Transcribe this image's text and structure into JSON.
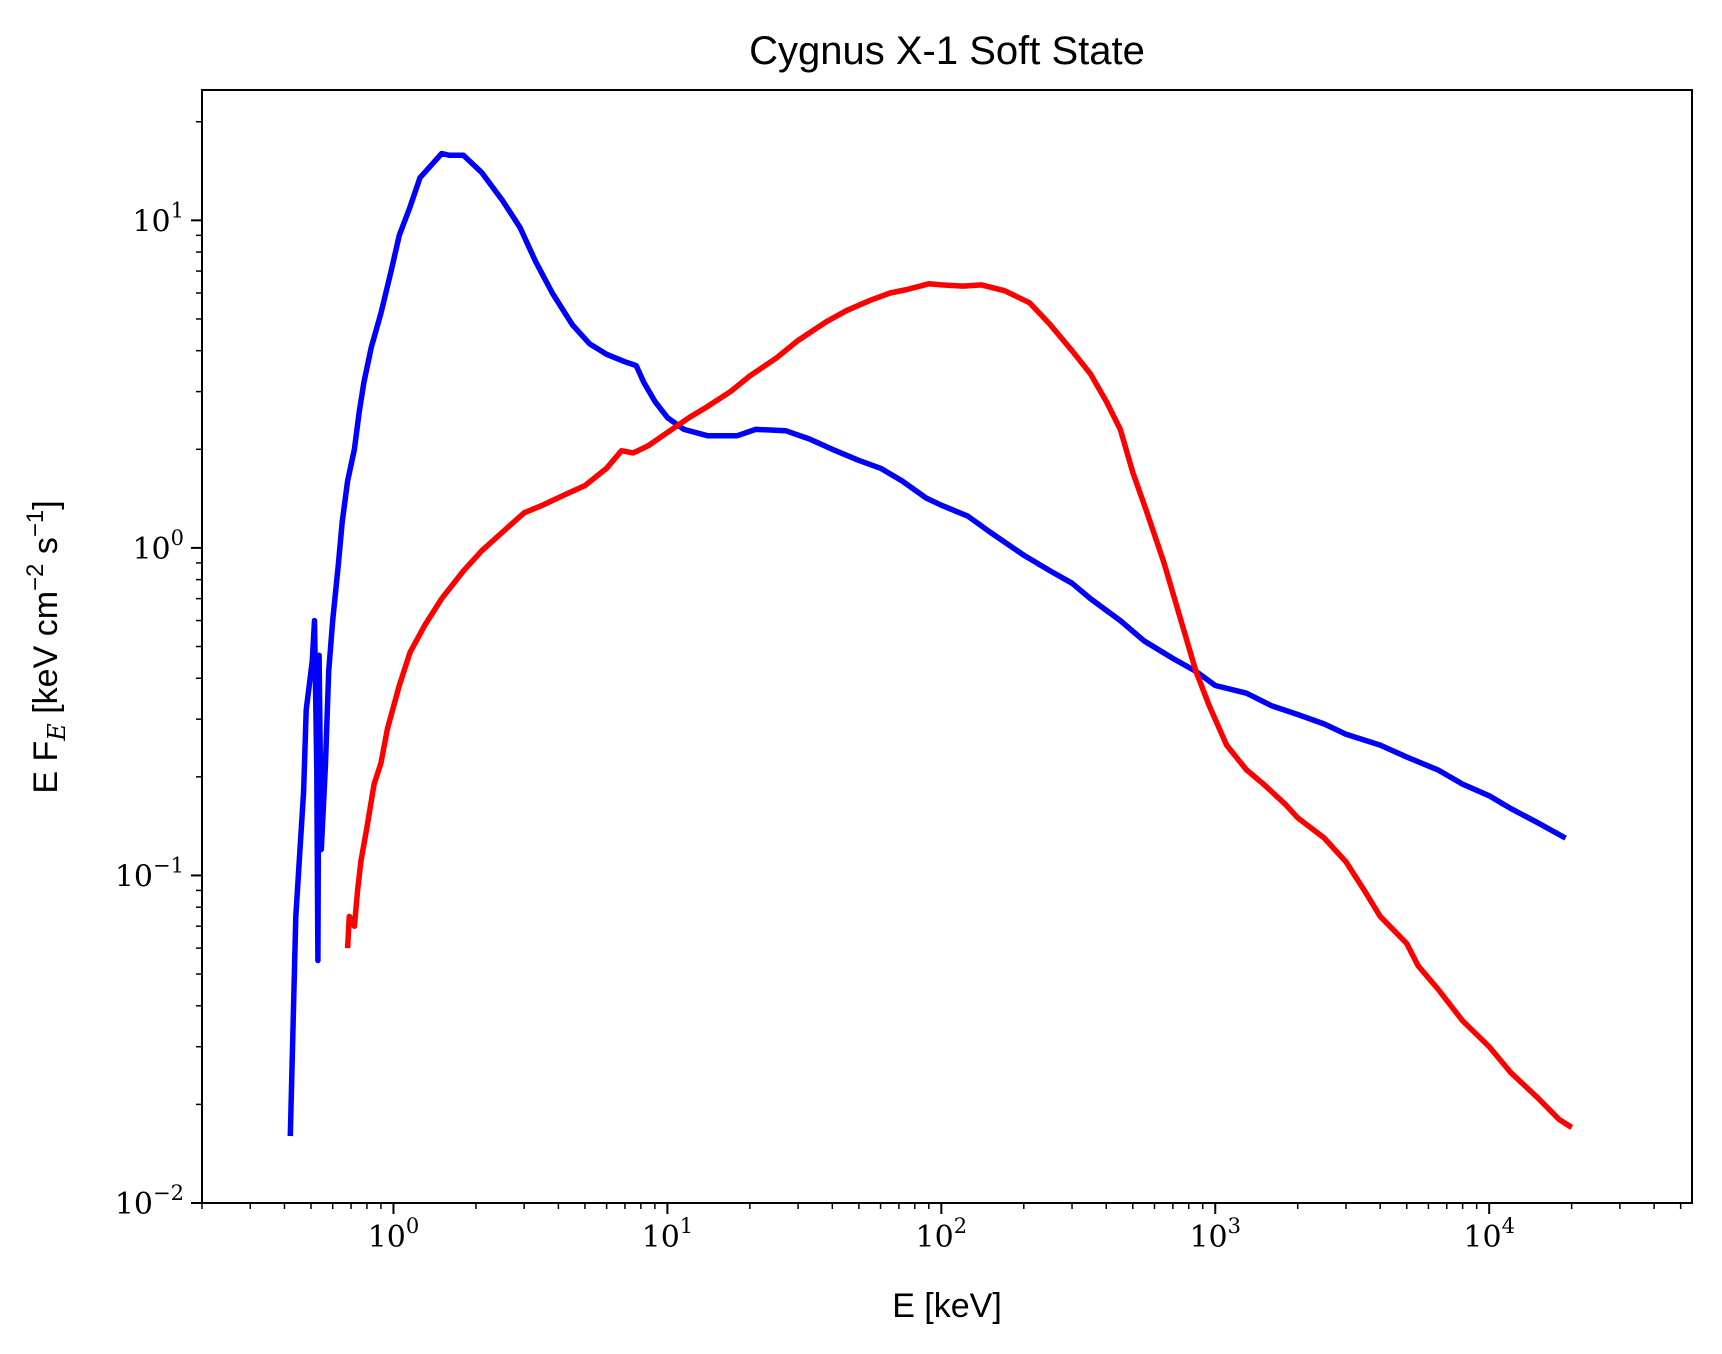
{
  "chart_data": {
    "type": "line",
    "title": "Cygnus X-1 Soft State",
    "xlabel": "E [keV]",
    "ylabel_main": "E F",
    "ylabel_sub": "E",
    "ylabel_units": "[keV cm",
    "ylabel_exp1": "−2",
    "ylabel_mid": " s",
    "ylabel_exp2": "−1",
    "ylabel_end": "]",
    "xscale": "log",
    "yscale": "log",
    "xlim": [
      0.2,
      55000
    ],
    "ylim": [
      0.01,
      25
    ],
    "grid": false,
    "xticks": [
      {
        "value": 1,
        "base": "10",
        "exp": "0"
      },
      {
        "value": 10,
        "base": "10",
        "exp": "1"
      },
      {
        "value": 100,
        "base": "10",
        "exp": "2"
      },
      {
        "value": 1000,
        "base": "10",
        "exp": "3"
      },
      {
        "value": 10000,
        "base": "10",
        "exp": "4"
      }
    ],
    "yticks": [
      {
        "value": 0.01,
        "base": "10",
        "exp": "−2"
      },
      {
        "value": 0.1,
        "base": "10",
        "exp": "−1"
      },
      {
        "value": 1,
        "base": "10",
        "exp": "0"
      },
      {
        "value": 10,
        "base": "10",
        "exp": "1"
      }
    ],
    "series": [
      {
        "color": "#0000ff",
        "points": [
          [
            0.42,
            0.016
          ],
          [
            0.44,
            0.075
          ],
          [
            0.47,
            0.18
          ],
          [
            0.48,
            0.32
          ],
          [
            0.505,
            0.45
          ],
          [
            0.515,
            0.6
          ],
          [
            0.525,
            0.21
          ],
          [
            0.53,
            0.055
          ],
          [
            0.535,
            0.47
          ],
          [
            0.545,
            0.12
          ],
          [
            0.565,
            0.22
          ],
          [
            0.58,
            0.42
          ],
          [
            0.6,
            0.6
          ],
          [
            0.63,
            0.9
          ],
          [
            0.65,
            1.2
          ],
          [
            0.68,
            1.6
          ],
          [
            0.72,
            2.0
          ],
          [
            0.75,
            2.6
          ],
          [
            0.78,
            3.2
          ],
          [
            0.83,
            4.1
          ],
          [
            0.9,
            5.2
          ],
          [
            0.98,
            7.0
          ],
          [
            1.05,
            9.0
          ],
          [
            1.15,
            11.0
          ],
          [
            1.25,
            13.5
          ],
          [
            1.4,
            15.0
          ],
          [
            1.5,
            16.0
          ],
          [
            1.6,
            15.8
          ],
          [
            1.8,
            15.8
          ],
          [
            2.1,
            14.0
          ],
          [
            2.5,
            11.5
          ],
          [
            2.9,
            9.5
          ],
          [
            3.3,
            7.5
          ],
          [
            3.8,
            6.0
          ],
          [
            4.5,
            4.8
          ],
          [
            5.2,
            4.2
          ],
          [
            6.0,
            3.9
          ],
          [
            7.0,
            3.7
          ],
          [
            7.7,
            3.6
          ],
          [
            8.2,
            3.2
          ],
          [
            9.0,
            2.8
          ],
          [
            10.0,
            2.5
          ],
          [
            11.5,
            2.3
          ],
          [
            14.0,
            2.2
          ],
          [
            18.0,
            2.2
          ],
          [
            21.0,
            2.3
          ],
          [
            27.0,
            2.28
          ],
          [
            33.0,
            2.15
          ],
          [
            40.0,
            2.0
          ],
          [
            50.0,
            1.85
          ],
          [
            60.0,
            1.75
          ],
          [
            72.0,
            1.6
          ],
          [
            88.0,
            1.42
          ],
          [
            100.0,
            1.35
          ],
          [
            125.0,
            1.25
          ],
          [
            150.0,
            1.12
          ],
          [
            200.0,
            0.95
          ],
          [
            250.0,
            0.85
          ],
          [
            300.0,
            0.78
          ],
          [
            350.0,
            0.7
          ],
          [
            450.0,
            0.6
          ],
          [
            550.0,
            0.52
          ],
          [
            700.0,
            0.46
          ],
          [
            850.0,
            0.42
          ],
          [
            1000.0,
            0.38
          ],
          [
            1300.0,
            0.36
          ],
          [
            1600.0,
            0.33
          ],
          [
            2000.0,
            0.31
          ],
          [
            2500.0,
            0.29
          ],
          [
            3000.0,
            0.27
          ],
          [
            4000.0,
            0.25
          ],
          [
            5000.0,
            0.23
          ],
          [
            6500.0,
            0.21
          ],
          [
            8000.0,
            0.19
          ],
          [
            10000.0,
            0.175
          ],
          [
            12000.0,
            0.16
          ],
          [
            15000.0,
            0.145
          ],
          [
            19000.0,
            0.13
          ]
        ]
      },
      {
        "color": "#ff0000",
        "points": [
          [
            0.68,
            0.06
          ],
          [
            0.69,
            0.075
          ],
          [
            0.72,
            0.07
          ],
          [
            0.74,
            0.09
          ],
          [
            0.76,
            0.11
          ],
          [
            0.8,
            0.14
          ],
          [
            0.85,
            0.19
          ],
          [
            0.9,
            0.22
          ],
          [
            0.95,
            0.28
          ],
          [
            1.05,
            0.38
          ],
          [
            1.15,
            0.48
          ],
          [
            1.3,
            0.58
          ],
          [
            1.5,
            0.7
          ],
          [
            1.8,
            0.85
          ],
          [
            2.1,
            0.98
          ],
          [
            2.6,
            1.15
          ],
          [
            3.0,
            1.28
          ],
          [
            3.5,
            1.35
          ],
          [
            4.2,
            1.45
          ],
          [
            5.0,
            1.55
          ],
          [
            6.0,
            1.75
          ],
          [
            6.8,
            1.98
          ],
          [
            7.5,
            1.95
          ],
          [
            8.5,
            2.05
          ],
          [
            10.0,
            2.25
          ],
          [
            12.0,
            2.5
          ],
          [
            14.0,
            2.7
          ],
          [
            17.0,
            3.0
          ],
          [
            20.0,
            3.35
          ],
          [
            25.0,
            3.8
          ],
          [
            30.0,
            4.3
          ],
          [
            38.0,
            4.9
          ],
          [
            45.0,
            5.3
          ],
          [
            55.0,
            5.7
          ],
          [
            65.0,
            6.0
          ],
          [
            75.0,
            6.15
          ],
          [
            90.0,
            6.4
          ],
          [
            100.0,
            6.35
          ],
          [
            120.0,
            6.3
          ],
          [
            140.0,
            6.35
          ],
          [
            170.0,
            6.1
          ],
          [
            210.0,
            5.6
          ],
          [
            250.0,
            4.8
          ],
          [
            300.0,
            4.0
          ],
          [
            350.0,
            3.4
          ],
          [
            400.0,
            2.8
          ],
          [
            450.0,
            2.3
          ],
          [
            500.0,
            1.7
          ],
          [
            560.0,
            1.3
          ],
          [
            650.0,
            0.9
          ],
          [
            750.0,
            0.6
          ],
          [
            850.0,
            0.42
          ],
          [
            950.0,
            0.33
          ],
          [
            1100.0,
            0.25
          ],
          [
            1300.0,
            0.21
          ],
          [
            1500.0,
            0.19
          ],
          [
            1800.0,
            0.165
          ],
          [
            2000.0,
            0.15
          ],
          [
            2500.0,
            0.13
          ],
          [
            3000.0,
            0.11
          ],
          [
            3500.0,
            0.09
          ],
          [
            4000.0,
            0.075
          ],
          [
            5000.0,
            0.062
          ],
          [
            5500.0,
            0.053
          ],
          [
            6500.0,
            0.045
          ],
          [
            8000.0,
            0.036
          ],
          [
            10000.0,
            0.03
          ],
          [
            12000.0,
            0.025
          ],
          [
            15000.0,
            0.021
          ],
          [
            18000.0,
            0.018
          ],
          [
            20000.0,
            0.017
          ]
        ]
      }
    ]
  }
}
